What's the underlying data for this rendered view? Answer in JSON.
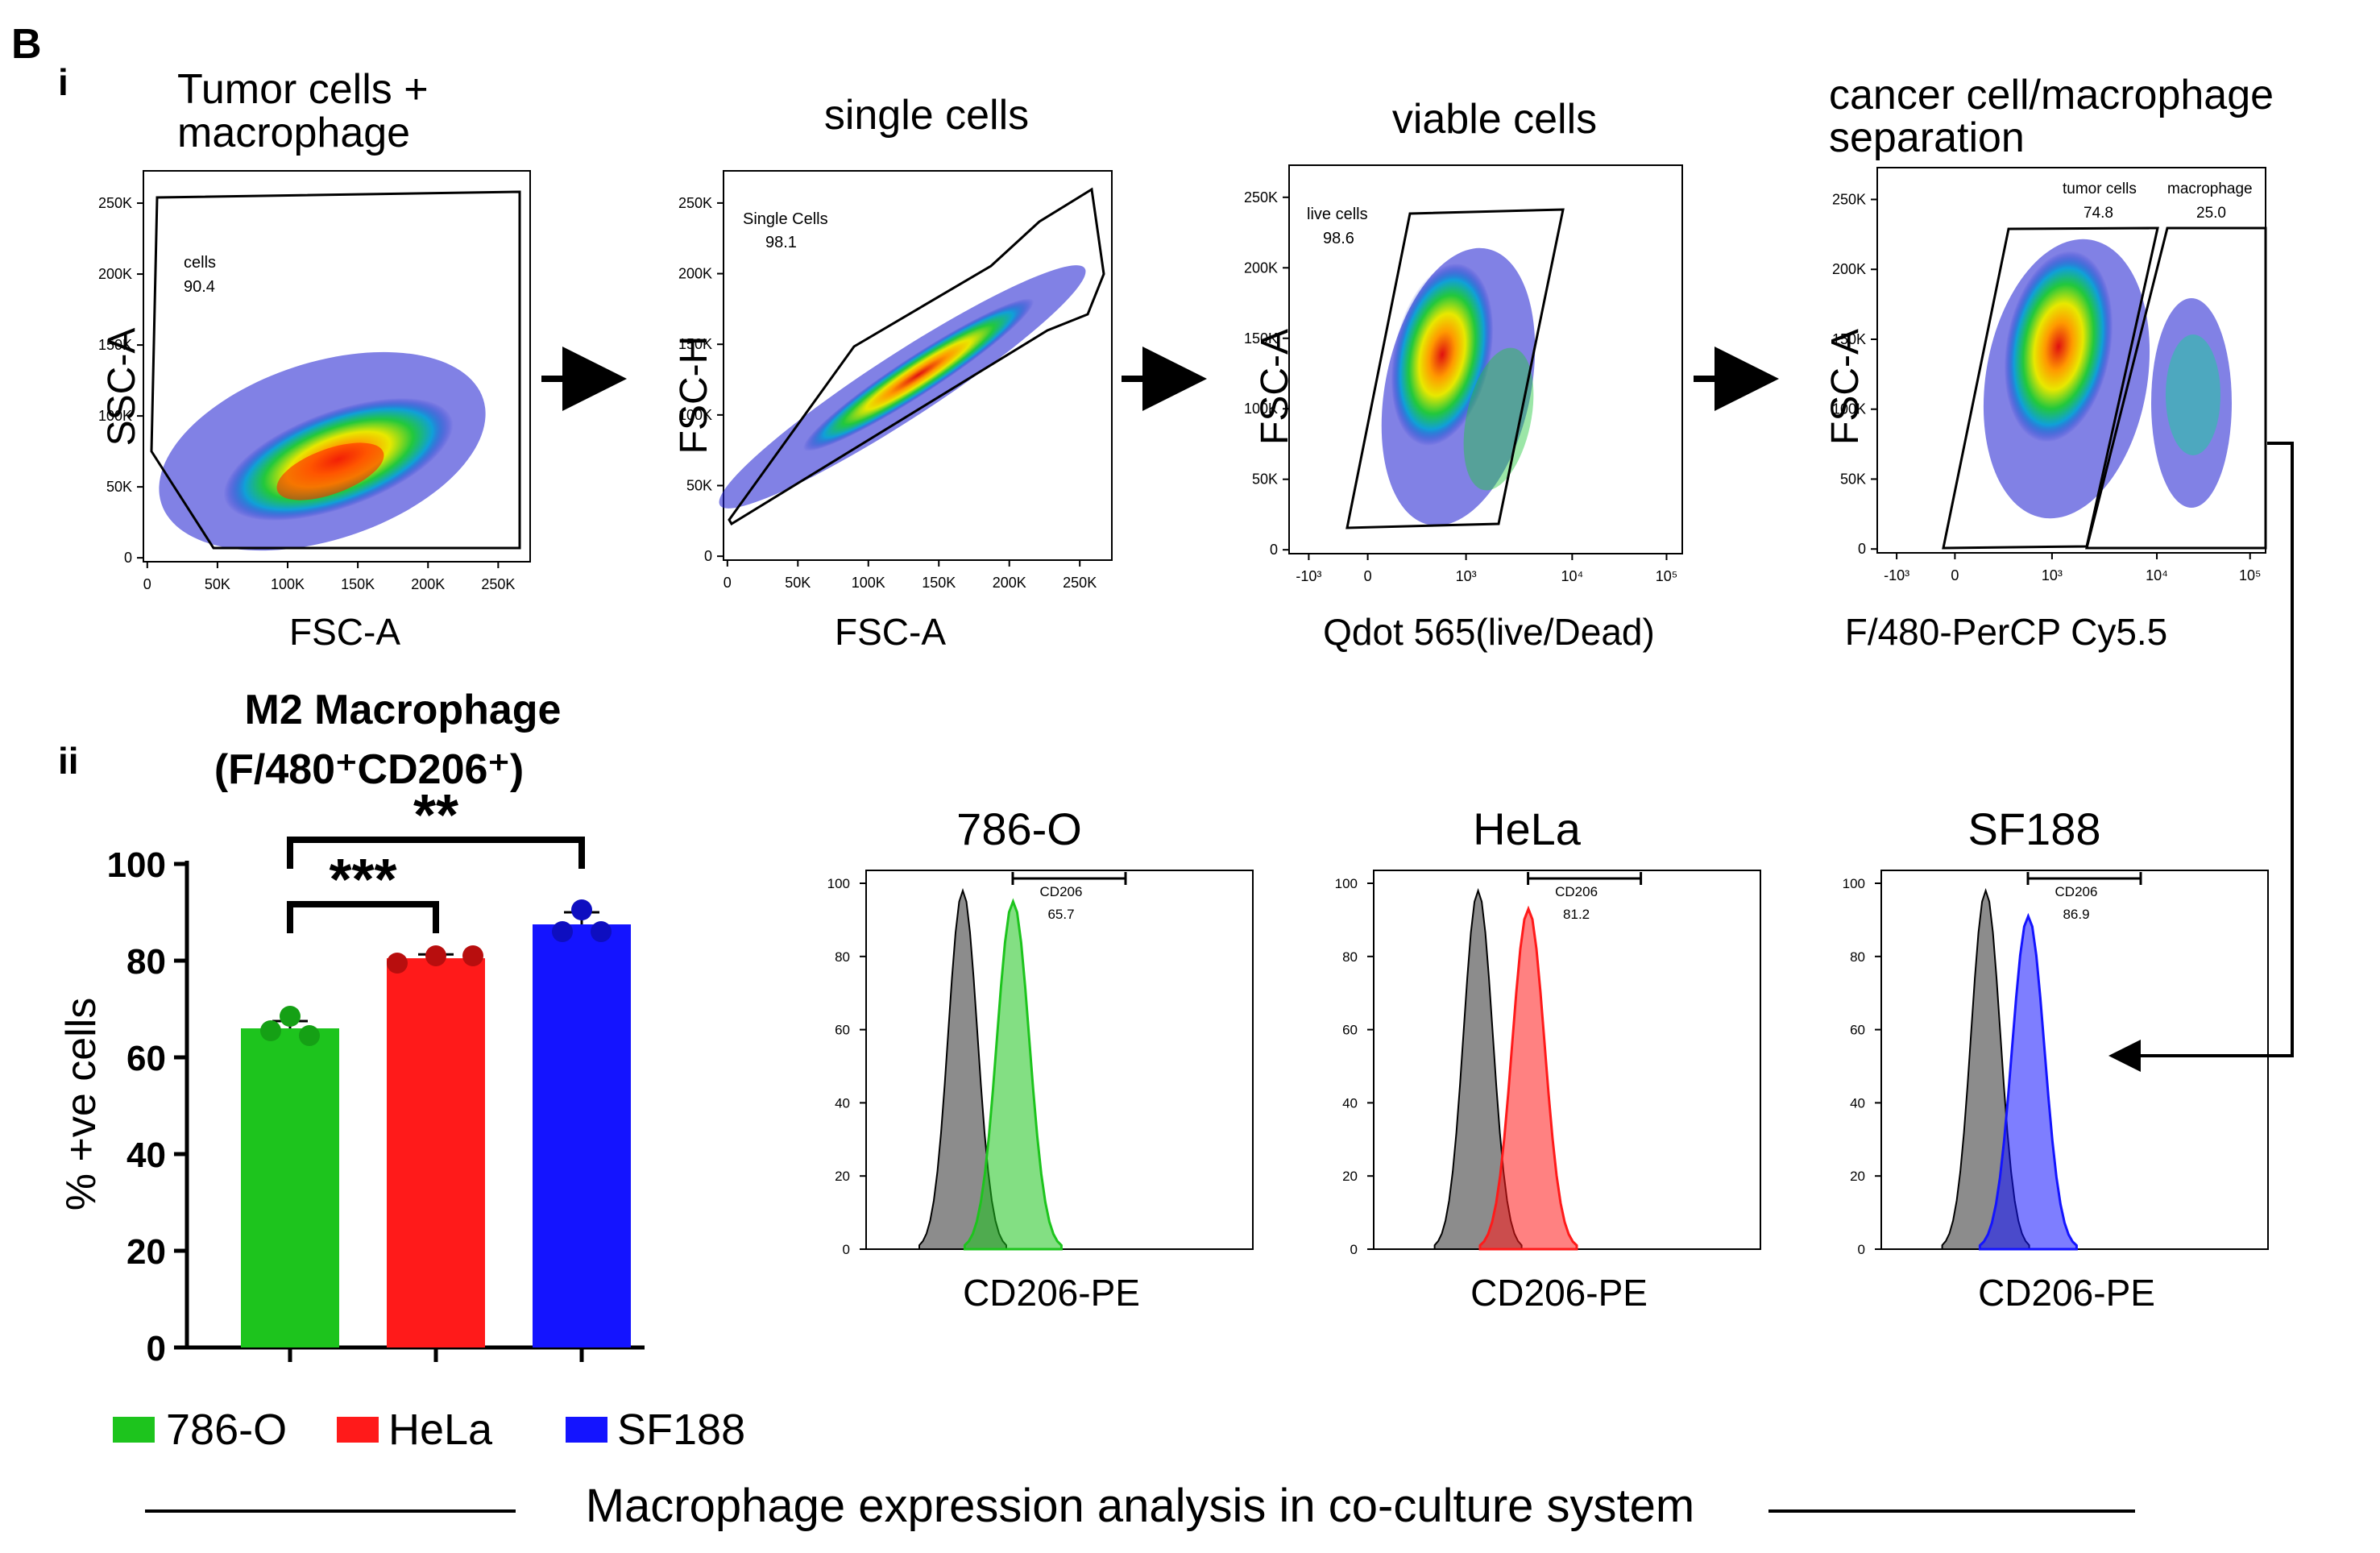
{
  "panel_letter": "B",
  "sub_i": "i",
  "sub_ii": "ii",
  "colors": {
    "c786": "#1dc41d",
    "hela": "#ff1a1a",
    "sf188": "#1414ff",
    "grey": "#777777"
  },
  "flow": {
    "p1": {
      "title1": "Tumor cells +",
      "title2": "macrophage",
      "xlabel": "FSC-A",
      "ylabel": "SSC-A",
      "gate_name": "cells",
      "gate_value": "90.4",
      "xticks": [
        "0",
        "50K",
        "100K",
        "150K",
        "200K",
        "250K"
      ],
      "yticks": [
        "0",
        "50K",
        "100K",
        "150K",
        "200K",
        "250K"
      ]
    },
    "p2": {
      "title1": "single cells",
      "xlabel": "FSC-A",
      "ylabel": "FSC-H",
      "gate_name": "Single Cells",
      "gate_value": "98.1",
      "xticks": [
        "0",
        "50K",
        "100K",
        "150K",
        "200K",
        "250K"
      ],
      "yticks": [
        "0",
        "50K",
        "100K",
        "150K",
        "200K",
        "250K"
      ]
    },
    "p3": {
      "title1": "viable cells",
      "xlabel": "Qdot 565(live/Dead)",
      "ylabel": "FSC-A",
      "gate_name": "live cells",
      "gate_value": "98.6",
      "xticks": [
        "-10³",
        "0",
        "10³",
        "10⁴",
        "10⁵"
      ],
      "yticks": [
        "0",
        "50K",
        "100K",
        "150K",
        "200K",
        "250K"
      ]
    },
    "p4": {
      "title1": "cancer cell/macrophage",
      "title2": "separation",
      "xlabel": "F/480-PerCP Cy5.5",
      "ylabel": "FSC-A",
      "gate1_name": "tumor cells",
      "gate1_value": "74.8",
      "gate2_name": "macrophage",
      "gate2_value": "25.0",
      "xticks": [
        "-10³",
        "0",
        "10³",
        "10⁴",
        "10⁵"
      ],
      "yticks": [
        "0",
        "50K",
        "100K",
        "150K",
        "200K",
        "250K"
      ]
    }
  },
  "histograms": {
    "yticks": [
      "0",
      "20",
      "40",
      "60",
      "80",
      "100"
    ],
    "xlabel": "CD206-PE",
    "gate_label": "CD206",
    "items": [
      {
        "title": "786-O",
        "value": "65.7"
      },
      {
        "title": "HeLa",
        "value": "81.2"
      },
      {
        "title": "SF188",
        "value": "86.9"
      }
    ]
  },
  "chart_data": {
    "type": "bar",
    "title_line1": "M2 Macrophage",
    "title_line2": "(F/480⁺CD206⁺)",
    "ylabel": "% +ve cells",
    "ylim": [
      0,
      100
    ],
    "yticks": [
      "0",
      "20",
      "40",
      "60",
      "80",
      "100"
    ],
    "categories": [
      "786-O",
      "HeLa",
      "SF188"
    ],
    "values": [
      66,
      80.5,
      87.5
    ],
    "errors": [
      1.5,
      0.8,
      2.5
    ],
    "points": [
      [
        68.5,
        65.5,
        64.5
      ],
      [
        79.5,
        81,
        81
      ],
      [
        90.5,
        86,
        86
      ]
    ],
    "significance": [
      {
        "from": 0,
        "to": 1,
        "label": "***"
      },
      {
        "from": 0,
        "to": 2,
        "label": "**"
      }
    ],
    "legend": [
      "786-O",
      "HeLa",
      "SF188"
    ]
  },
  "footer": "Macrophage expression analysis in co-culture system"
}
